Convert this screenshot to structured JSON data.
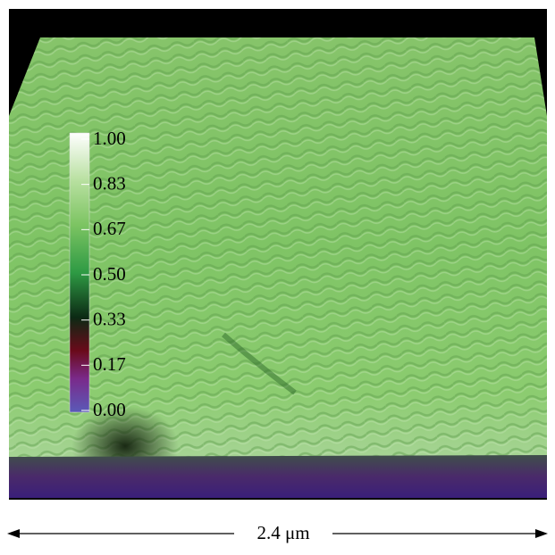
{
  "colorbar": {
    "tick_labels": [
      "1.00",
      "0.83",
      "0.67",
      "0.50",
      "0.33",
      "0.17",
      "0.00"
    ]
  },
  "scale_bar": {
    "label": "2.4 μm"
  }
}
